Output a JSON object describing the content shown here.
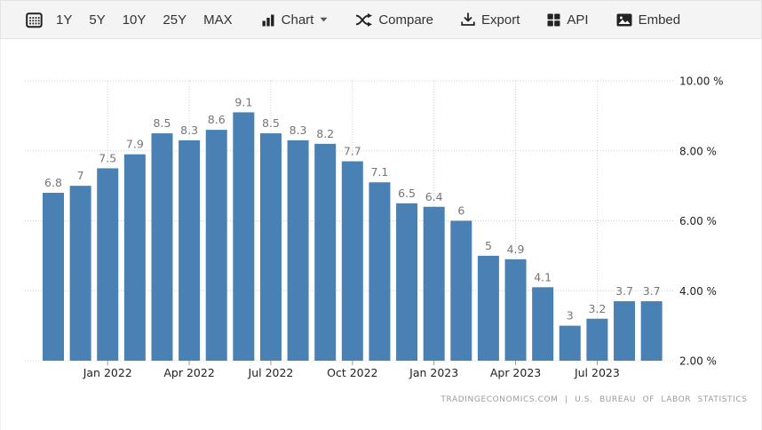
{
  "toolbar": {
    "range_buttons": [
      "1Y",
      "5Y",
      "10Y",
      "25Y",
      "MAX"
    ],
    "chart_label": "Chart",
    "compare_label": "Compare",
    "export_label": "Export",
    "api_label": "API",
    "embed_label": "Embed"
  },
  "chart_data": {
    "type": "bar",
    "title": "",
    "xlabel": "",
    "ylabel": "",
    "categories": [
      "Nov 2021",
      "Dec 2021",
      "Jan 2022",
      "Feb 2022",
      "Mar 2022",
      "Apr 2022",
      "May 2022",
      "Jun 2022",
      "Jul 2022",
      "Aug 2022",
      "Sep 2022",
      "Oct 2022",
      "Nov 2022",
      "Dec 2022",
      "Jan 2023",
      "Feb 2023",
      "Mar 2023",
      "Apr 2023",
      "May 2023",
      "Jun 2023",
      "Jul 2023",
      "Aug 2023",
      "Sep 2023"
    ],
    "values": [
      6.8,
      7,
      7.5,
      7.9,
      8.5,
      8.3,
      8.6,
      9.1,
      8.5,
      8.3,
      8.2,
      7.7,
      7.1,
      6.5,
      6.4,
      6,
      5,
      4.9,
      4.1,
      3,
      3.2,
      3.7,
      3.7
    ],
    "value_labels": [
      "6.8",
      "7",
      "7.5",
      "7.9",
      "8.5",
      "8.3",
      "8.6",
      "9.1",
      "8.5",
      "8.3",
      "8.2",
      "7.7",
      "7.1",
      "6.5",
      "6.4",
      "6",
      "5",
      "4.9",
      "4.1",
      "3",
      "3.2",
      "3.7",
      "3.7"
    ],
    "x_ticks": [
      {
        "index": 2,
        "label": "Jan 2022"
      },
      {
        "index": 5,
        "label": "Apr 2022"
      },
      {
        "index": 8,
        "label": "Jul 2022"
      },
      {
        "index": 11,
        "label": "Oct 2022"
      },
      {
        "index": 14,
        "label": "Jan 2023"
      },
      {
        "index": 17,
        "label": "Apr 2023"
      },
      {
        "index": 20,
        "label": "Jul 2023"
      }
    ],
    "y_ticks": [
      {
        "value": 10,
        "label": "10.00 %"
      },
      {
        "value": 8,
        "label": "8.00 %"
      },
      {
        "value": 6,
        "label": "6.00 %"
      },
      {
        "value": 4,
        "label": "4.00 %"
      },
      {
        "value": 2,
        "label": "2.00 %"
      }
    ],
    "ylim": [
      2,
      10.4
    ],
    "grid": "dotted",
    "legend_position": "none",
    "bar_color": "#4a81b4",
    "grid_color": "#cfcfcf",
    "value_label_color": "#767676",
    "axis_label_color": "#222222",
    "attribution": "TRADINGECONOMICS.COM | U.S. BUREAU OF LABOR STATISTICS"
  }
}
